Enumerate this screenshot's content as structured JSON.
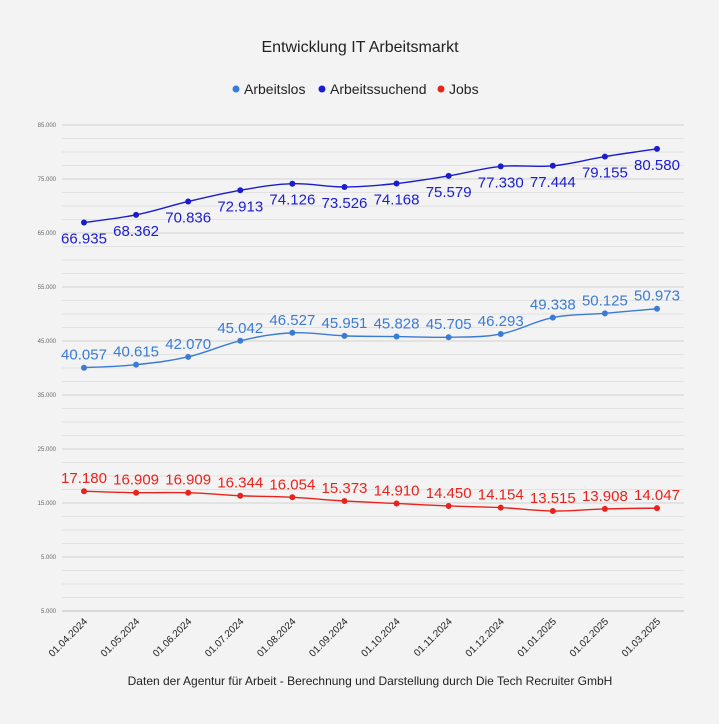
{
  "chart_data": {
    "type": "line",
    "title": "Entwicklung IT Arbeitsmarkt",
    "footer": "Daten der Agentur für Arbeit - Berechnung und Darstellung durch Die Tech Recruiter GmbH",
    "legend_position": "top",
    "grid": true,
    "ylim": [
      5000,
      85000
    ],
    "ytick_labels": [
      "85.000",
      "75.000",
      "65.000",
      "55.000",
      "45.000",
      "35.000",
      "25.000",
      "15.000",
      "5.000",
      "5.000"
    ],
    "categories": [
      "01.04.2024",
      "01.05.2024",
      "01.06.2024",
      "01.07.2024",
      "01.08.2024",
      "01.09.2024",
      "01.10.2024",
      "01.11.2024",
      "01.12.2024",
      "01.01.2025",
      "01.02.2025",
      "01.03.2025"
    ],
    "series": [
      {
        "name": "Arbeitslos",
        "color": "#3a7bd5",
        "values": [
          40057,
          40615,
          42070,
          45042,
          46527,
          45951,
          45828,
          45705,
          46293,
          49338,
          50125,
          50973
        ],
        "labels": [
          "40.057",
          "40.615",
          "42.070",
          "45.042",
          "46.527",
          "45.951",
          "45.828",
          "45.705",
          "46.293",
          "49.338",
          "50.125",
          "50.973"
        ],
        "label_position": "above"
      },
      {
        "name": "Arbeitssuchend",
        "color": "#1c1ccf",
        "values": [
          66935,
          68362,
          70836,
          72913,
          74126,
          73526,
          74168,
          75579,
          77330,
          77444,
          79155,
          80580
        ],
        "labels": [
          "66.935",
          "68.362",
          "70.836",
          "72.913",
          "74.126",
          "73.526",
          "74.168",
          "75.579",
          "77.330",
          "77.444",
          "79.155",
          "80.580"
        ],
        "label_position": "below"
      },
      {
        "name": "Jobs",
        "color": "#e8231c",
        "values": [
          17180,
          16909,
          16909,
          16344,
          16054,
          15373,
          14910,
          14450,
          14154,
          13515,
          13908,
          14047
        ],
        "labels": [
          "17.180",
          "16.909",
          "16.909",
          "16.344",
          "16.054",
          "15.373",
          "14.910",
          "14.450",
          "14.154",
          "13.515",
          "13.908",
          "14.047"
        ],
        "label_position": "above"
      }
    ]
  }
}
